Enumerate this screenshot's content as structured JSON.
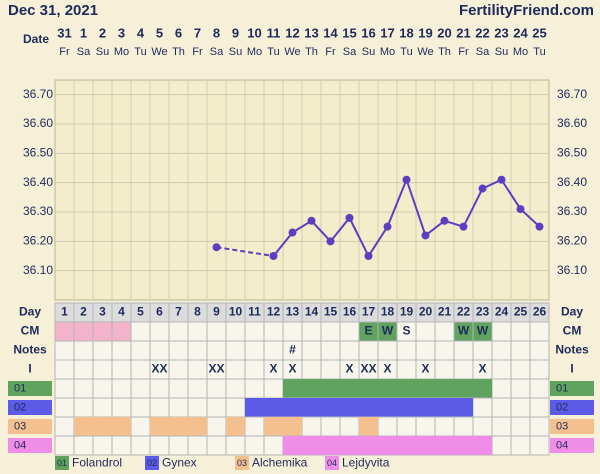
{
  "header": {
    "date": "Dec 31, 2021",
    "site": "FertilityFriend.com"
  },
  "chart_data": {
    "type": "line",
    "x_label": "Date",
    "dates": [
      "31",
      "1",
      "2",
      "3",
      "4",
      "5",
      "6",
      "7",
      "8",
      "9",
      "10",
      "11",
      "12",
      "13",
      "14",
      "15",
      "16",
      "17",
      "18",
      "19",
      "20",
      "21",
      "22",
      "23",
      "24",
      "25"
    ],
    "weekdays": [
      "Fr",
      "Sa",
      "Su",
      "Mo",
      "Tu",
      "We",
      "Th",
      "Fr",
      "Sa",
      "Su",
      "Mo",
      "Tu",
      "We",
      "Th",
      "Fr",
      "Sa",
      "Su",
      "Mo",
      "Tu",
      "We",
      "Th",
      "Fr",
      "Sa",
      "Su",
      "Mo",
      "Tu"
    ],
    "series": [
      {
        "color": "#5a3fc0",
        "values": [
          null,
          null,
          null,
          null,
          null,
          null,
          null,
          null,
          36.18,
          null,
          null,
          36.15,
          36.23,
          36.27,
          36.2,
          36.28,
          36.15,
          36.25,
          36.41,
          36.22,
          36.27,
          36.25,
          36.38,
          36.41,
          36.31,
          36.25
        ]
      }
    ],
    "ylim": [
      36.0,
      36.75
    ],
    "yticks": [
      {
        "value": 36.1,
        "label": "36.10"
      },
      {
        "value": 36.2,
        "label": "36.20"
      },
      {
        "value": 36.3,
        "label": "36.30"
      },
      {
        "value": 36.4,
        "label": "36.40"
      },
      {
        "value": 36.5,
        "label": "36.50"
      },
      {
        "value": 36.6,
        "label": "36.60"
      },
      {
        "value": 36.7,
        "label": "36.70"
      }
    ],
    "grid": true,
    "cycle": {
      "label": "Day",
      "days": [
        1,
        2,
        3,
        4,
        5,
        6,
        7,
        8,
        9,
        10,
        11,
        12,
        13,
        14,
        15,
        16,
        17,
        18,
        19,
        20,
        21,
        22,
        23,
        24,
        25,
        26
      ]
    },
    "rows": [
      {
        "label": "CM",
        "entries": [
          null,
          null,
          null,
          null,
          null,
          null,
          null,
          null,
          null,
          null,
          null,
          null,
          null,
          null,
          null,
          null,
          "E",
          "W",
          "S",
          null,
          null,
          "W",
          "W",
          null,
          null,
          null
        ],
        "fills": [
          "#f2b3cb",
          "#f2b3cb",
          "#f2b3cb",
          "#f2b3cb",
          null,
          null,
          null,
          null,
          null,
          null,
          null,
          null,
          null,
          null,
          null,
          null,
          "#5fa35f",
          "#5fa35f",
          null,
          null,
          null,
          "#5fa35f",
          "#5fa35f",
          null,
          null,
          null
        ]
      },
      {
        "label": "Notes",
        "entries": [
          null,
          null,
          null,
          null,
          null,
          null,
          null,
          null,
          null,
          null,
          null,
          null,
          "#",
          null,
          null,
          null,
          null,
          null,
          null,
          null,
          null,
          null,
          null,
          null,
          null,
          null
        ]
      },
      {
        "label": "I",
        "entries": [
          null,
          null,
          null,
          null,
          null,
          "XX",
          null,
          null,
          "XX",
          null,
          null,
          "X",
          "X",
          null,
          null,
          "X",
          "XX",
          "X",
          null,
          "X",
          null,
          null,
          "X",
          null,
          null,
          null
        ]
      }
    ],
    "medications": [
      {
        "number": "01",
        "name": "Folandrol",
        "color": "#5fa35f",
        "days": [
          13,
          14,
          15,
          16,
          17,
          18,
          19,
          20,
          21,
          22,
          23
        ]
      },
      {
        "number": "02",
        "name": "Gynex",
        "color": "#5b5be8",
        "days": [
          11,
          12,
          13,
          14,
          15,
          16,
          17,
          18,
          19,
          20,
          21,
          22
        ]
      },
      {
        "number": "03",
        "name": "Alchemika",
        "color": "#f5c08f",
        "days": [
          2,
          3,
          4,
          6,
          7,
          8,
          10,
          12,
          13,
          17
        ]
      },
      {
        "number": "04",
        "name": "Lejdyvita",
        "color": "#f08de8",
        "days": [
          13,
          14,
          15,
          16,
          17,
          18,
          19,
          20,
          21,
          22,
          23
        ]
      }
    ]
  }
}
